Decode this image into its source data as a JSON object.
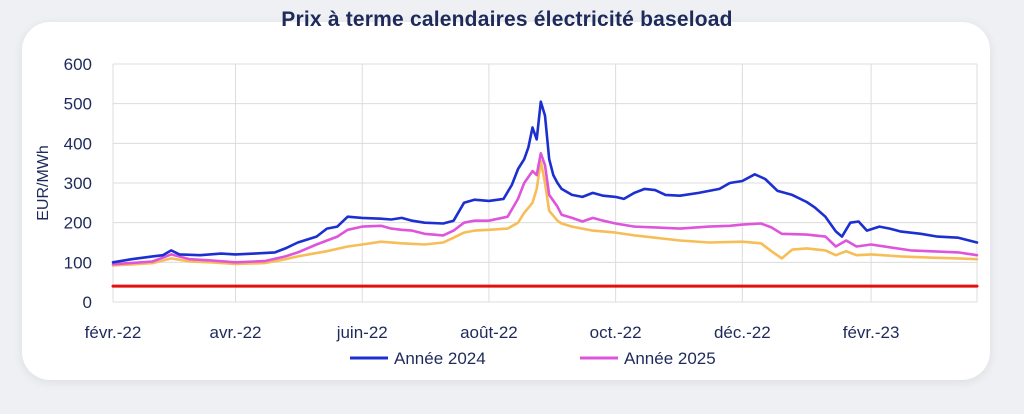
{
  "chart_data": {
    "type": "line",
    "title": "Prix à terme calendaires électricité baseload",
    "ylabel": "EUR/MWh",
    "xlabel": "",
    "ylim": [
      0,
      600
    ],
    "yticks": [
      0,
      100,
      200,
      300,
      400,
      500,
      600
    ],
    "xlim": [
      "2022-02-01",
      "2023-03-24"
    ],
    "xticks": [
      {
        "date": "2022-02-01",
        "label": "févr.-22"
      },
      {
        "date": "2022-04-01",
        "label": "avr.-22"
      },
      {
        "date": "2022-06-01",
        "label": "juin-22"
      },
      {
        "date": "2022-08-01",
        "label": "août-22"
      },
      {
        "date": "2022-10-01",
        "label": "oct.-22"
      },
      {
        "date": "2022-12-01",
        "label": "déc.-22"
      },
      {
        "date": "2023-02-01",
        "label": "févr.-23"
      }
    ],
    "grid": true,
    "legend": "bottom",
    "series": [
      {
        "name": "Année 2024",
        "color": "#1c2fd0",
        "points": [
          [
            "2022-02-01",
            100
          ],
          [
            "2022-02-10",
            108
          ],
          [
            "2022-02-20",
            115
          ],
          [
            "2022-02-25",
            118
          ],
          [
            "2022-03-01",
            130
          ],
          [
            "2022-03-05",
            120
          ],
          [
            "2022-03-15",
            118
          ],
          [
            "2022-03-25",
            122
          ],
          [
            "2022-04-01",
            120
          ],
          [
            "2022-04-10",
            122
          ],
          [
            "2022-04-20",
            125
          ],
          [
            "2022-04-25",
            135
          ],
          [
            "2022-05-01",
            150
          ],
          [
            "2022-05-10",
            165
          ],
          [
            "2022-05-15",
            185
          ],
          [
            "2022-05-20",
            190
          ],
          [
            "2022-05-25",
            215
          ],
          [
            "2022-06-01",
            212
          ],
          [
            "2022-06-10",
            210
          ],
          [
            "2022-06-15",
            208
          ],
          [
            "2022-06-20",
            212
          ],
          [
            "2022-06-25",
            205
          ],
          [
            "2022-07-01",
            200
          ],
          [
            "2022-07-10",
            198
          ],
          [
            "2022-07-15",
            205
          ],
          [
            "2022-07-20",
            250
          ],
          [
            "2022-07-25",
            258
          ],
          [
            "2022-08-01",
            255
          ],
          [
            "2022-08-08",
            260
          ],
          [
            "2022-08-12",
            295
          ],
          [
            "2022-08-15",
            335
          ],
          [
            "2022-08-18",
            360
          ],
          [
            "2022-08-20",
            390
          ],
          [
            "2022-08-22",
            440
          ],
          [
            "2022-08-24",
            410
          ],
          [
            "2022-08-26",
            505
          ],
          [
            "2022-08-28",
            470
          ],
          [
            "2022-08-30",
            360
          ],
          [
            "2022-09-01",
            320
          ],
          [
            "2022-09-03",
            300
          ],
          [
            "2022-09-05",
            285
          ],
          [
            "2022-09-10",
            270
          ],
          [
            "2022-09-15",
            265
          ],
          [
            "2022-09-20",
            275
          ],
          [
            "2022-09-25",
            268
          ],
          [
            "2022-10-01",
            265
          ],
          [
            "2022-10-05",
            260
          ],
          [
            "2022-10-10",
            275
          ],
          [
            "2022-10-15",
            285
          ],
          [
            "2022-10-20",
            282
          ],
          [
            "2022-10-25",
            270
          ],
          [
            "2022-11-01",
            268
          ],
          [
            "2022-11-10",
            275
          ],
          [
            "2022-11-15",
            280
          ],
          [
            "2022-11-20",
            285
          ],
          [
            "2022-11-25",
            300
          ],
          [
            "2022-12-01",
            305
          ],
          [
            "2022-12-07",
            322
          ],
          [
            "2022-12-12",
            310
          ],
          [
            "2022-12-18",
            280
          ],
          [
            "2022-12-25",
            270
          ],
          [
            "2023-01-01",
            252
          ],
          [
            "2023-01-05",
            238
          ],
          [
            "2023-01-10",
            215
          ],
          [
            "2023-01-15",
            178
          ],
          [
            "2023-01-18",
            165
          ],
          [
            "2023-01-22",
            200
          ],
          [
            "2023-01-26",
            203
          ],
          [
            "2023-01-30",
            180
          ],
          [
            "2023-02-05",
            190
          ],
          [
            "2023-02-10",
            185
          ],
          [
            "2023-02-15",
            178
          ],
          [
            "2023-02-25",
            172
          ],
          [
            "2023-03-05",
            165
          ],
          [
            "2023-03-15",
            162
          ],
          [
            "2023-03-24",
            150
          ]
        ]
      },
      {
        "name": "Année 2025",
        "color": "#de55dc",
        "points": [
          [
            "2022-02-01",
            95
          ],
          [
            "2022-02-20",
            102
          ],
          [
            "2022-03-01",
            120
          ],
          [
            "2022-03-10",
            108
          ],
          [
            "2022-03-20",
            105
          ],
          [
            "2022-04-01",
            100
          ],
          [
            "2022-04-15",
            103
          ],
          [
            "2022-04-25",
            115
          ],
          [
            "2022-05-01",
            125
          ],
          [
            "2022-05-10",
            145
          ],
          [
            "2022-05-20",
            165
          ],
          [
            "2022-05-25",
            182
          ],
          [
            "2022-06-01",
            190
          ],
          [
            "2022-06-10",
            192
          ],
          [
            "2022-06-15",
            185
          ],
          [
            "2022-06-20",
            182
          ],
          [
            "2022-06-25",
            180
          ],
          [
            "2022-07-01",
            172
          ],
          [
            "2022-07-10",
            168
          ],
          [
            "2022-07-15",
            180
          ],
          [
            "2022-07-20",
            200
          ],
          [
            "2022-07-25",
            205
          ],
          [
            "2022-08-01",
            205
          ],
          [
            "2022-08-10",
            215
          ],
          [
            "2022-08-15",
            260
          ],
          [
            "2022-08-18",
            300
          ],
          [
            "2022-08-22",
            330
          ],
          [
            "2022-08-24",
            320
          ],
          [
            "2022-08-26",
            375
          ],
          [
            "2022-08-28",
            345
          ],
          [
            "2022-08-30",
            270
          ],
          [
            "2022-09-03",
            240
          ],
          [
            "2022-09-05",
            220
          ],
          [
            "2022-09-10",
            212
          ],
          [
            "2022-09-15",
            203
          ],
          [
            "2022-09-20",
            212
          ],
          [
            "2022-09-25",
            205
          ],
          [
            "2022-10-01",
            198
          ],
          [
            "2022-10-10",
            190
          ],
          [
            "2022-10-20",
            188
          ],
          [
            "2022-11-01",
            185
          ],
          [
            "2022-11-15",
            190
          ],
          [
            "2022-11-25",
            192
          ],
          [
            "2022-12-01",
            195
          ],
          [
            "2022-12-10",
            198
          ],
          [
            "2022-12-15",
            188
          ],
          [
            "2022-12-20",
            172
          ],
          [
            "2023-01-01",
            170
          ],
          [
            "2023-01-10",
            165
          ],
          [
            "2023-01-15",
            140
          ],
          [
            "2023-01-20",
            155
          ],
          [
            "2023-01-25",
            140
          ],
          [
            "2023-02-01",
            145
          ],
          [
            "2023-02-10",
            138
          ],
          [
            "2023-02-20",
            130
          ],
          [
            "2023-03-01",
            128
          ],
          [
            "2023-03-15",
            125
          ],
          [
            "2023-03-24",
            118
          ]
        ]
      },
      {
        "name": "",
        "color": "#f7bd57",
        "points": [
          [
            "2022-02-01",
            92
          ],
          [
            "2022-02-20",
            98
          ],
          [
            "2022-03-01",
            110
          ],
          [
            "2022-03-10",
            102
          ],
          [
            "2022-03-20",
            100
          ],
          [
            "2022-04-01",
            96
          ],
          [
            "2022-04-15",
            98
          ],
          [
            "2022-04-25",
            108
          ],
          [
            "2022-05-01",
            115
          ],
          [
            "2022-05-15",
            128
          ],
          [
            "2022-05-25",
            140
          ],
          [
            "2022-06-01",
            145
          ],
          [
            "2022-06-10",
            152
          ],
          [
            "2022-06-20",
            148
          ],
          [
            "2022-07-01",
            145
          ],
          [
            "2022-07-10",
            150
          ],
          [
            "2022-07-15",
            162
          ],
          [
            "2022-07-20",
            175
          ],
          [
            "2022-07-25",
            180
          ],
          [
            "2022-08-01",
            182
          ],
          [
            "2022-08-10",
            185
          ],
          [
            "2022-08-15",
            200
          ],
          [
            "2022-08-18",
            225
          ],
          [
            "2022-08-22",
            250
          ],
          [
            "2022-08-24",
            285
          ],
          [
            "2022-08-26",
            355
          ],
          [
            "2022-08-28",
            300
          ],
          [
            "2022-08-30",
            230
          ],
          [
            "2022-09-03",
            205
          ],
          [
            "2022-09-05",
            198
          ],
          [
            "2022-09-10",
            190
          ],
          [
            "2022-09-20",
            180
          ],
          [
            "2022-10-01",
            175
          ],
          [
            "2022-10-10",
            168
          ],
          [
            "2022-10-20",
            162
          ],
          [
            "2022-11-01",
            155
          ],
          [
            "2022-11-15",
            150
          ],
          [
            "2022-12-01",
            152
          ],
          [
            "2022-12-10",
            148
          ],
          [
            "2022-12-15",
            128
          ],
          [
            "2022-12-20",
            110
          ],
          [
            "2022-12-25",
            132
          ],
          [
            "2023-01-01",
            135
          ],
          [
            "2023-01-10",
            130
          ],
          [
            "2023-01-15",
            118
          ],
          [
            "2023-01-20",
            128
          ],
          [
            "2023-01-25",
            118
          ],
          [
            "2023-02-01",
            120
          ],
          [
            "2023-02-15",
            115
          ],
          [
            "2023-03-01",
            112
          ],
          [
            "2023-03-15",
            110
          ],
          [
            "2023-03-24",
            108
          ]
        ]
      },
      {
        "name": "",
        "color": "#e60e0e",
        "points": [
          [
            "2022-02-01",
            40
          ],
          [
            "2023-03-24",
            40
          ]
        ]
      }
    ]
  }
}
